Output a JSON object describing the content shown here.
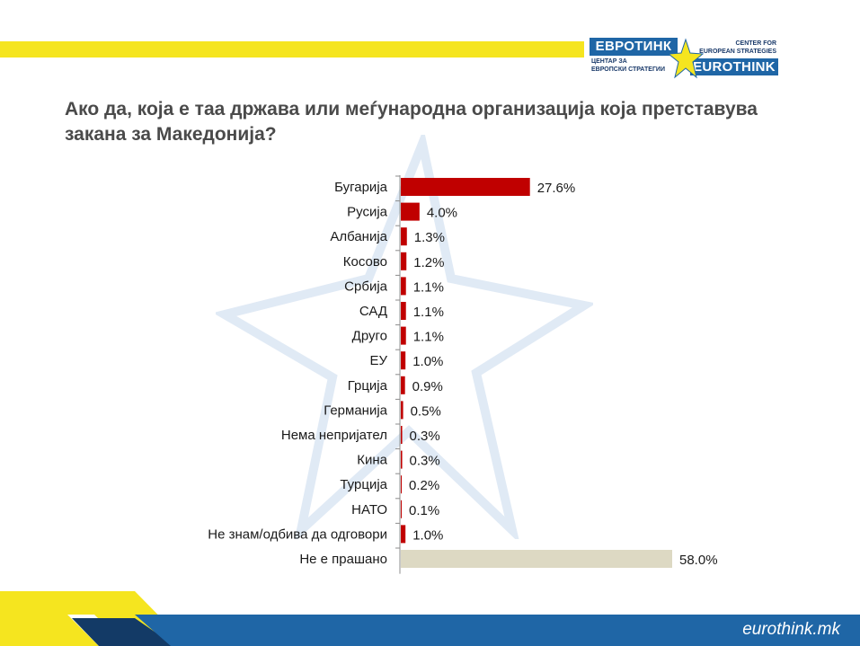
{
  "logo": {
    "mk_name": "ЕВРОТИНК",
    "mk_sub_1": "ЦЕНТАР ЗА",
    "mk_sub_2": "ЕВРОПСКИ СТРАТЕГИИ",
    "en_sub_1": "CENTER FOR",
    "en_sub_2": "EUROPEAN STRATEGIES",
    "en_name": "EUROTHINK"
  },
  "footer": {
    "brand": "eurothink.mk"
  },
  "colors": {
    "bar": "#c00000",
    "bar_alt": "#ddd9c3",
    "accent_yellow": "#f5e51f",
    "accent_blue": "#1f66a6"
  },
  "chart_data": {
    "type": "bar",
    "orientation": "horizontal",
    "title": "Ако да, која е таа држава или меѓународна организација која претставува закана за Македонија?",
    "categories": [
      "Бугарија",
      "Русија",
      "Албанија",
      "Косово",
      "Србија",
      "САД",
      "Друго",
      "ЕУ",
      "Грција",
      "Германија",
      "Нема непријател",
      "Кина",
      "Турција",
      "НАТО",
      "Не знам/одбива да одговори",
      "Не е прашано"
    ],
    "values": [
      27.6,
      4.0,
      1.3,
      1.2,
      1.1,
      1.1,
      1.1,
      1.0,
      0.9,
      0.5,
      0.3,
      0.3,
      0.2,
      0.1,
      1.0,
      58.0
    ],
    "value_labels": [
      "27.6%",
      "4.0%",
      "1.3%",
      "1.2%",
      "1.1%",
      "1.1%",
      "1.1%",
      "1.0%",
      "0.9%",
      "0.5%",
      "0.3%",
      "0.3%",
      "0.2%",
      "0.1%",
      "1.0%",
      "58.0%"
    ],
    "highlight_last": true,
    "xlim": [
      0,
      58.0
    ],
    "grid": false,
    "xlabel": "",
    "ylabel": ""
  }
}
